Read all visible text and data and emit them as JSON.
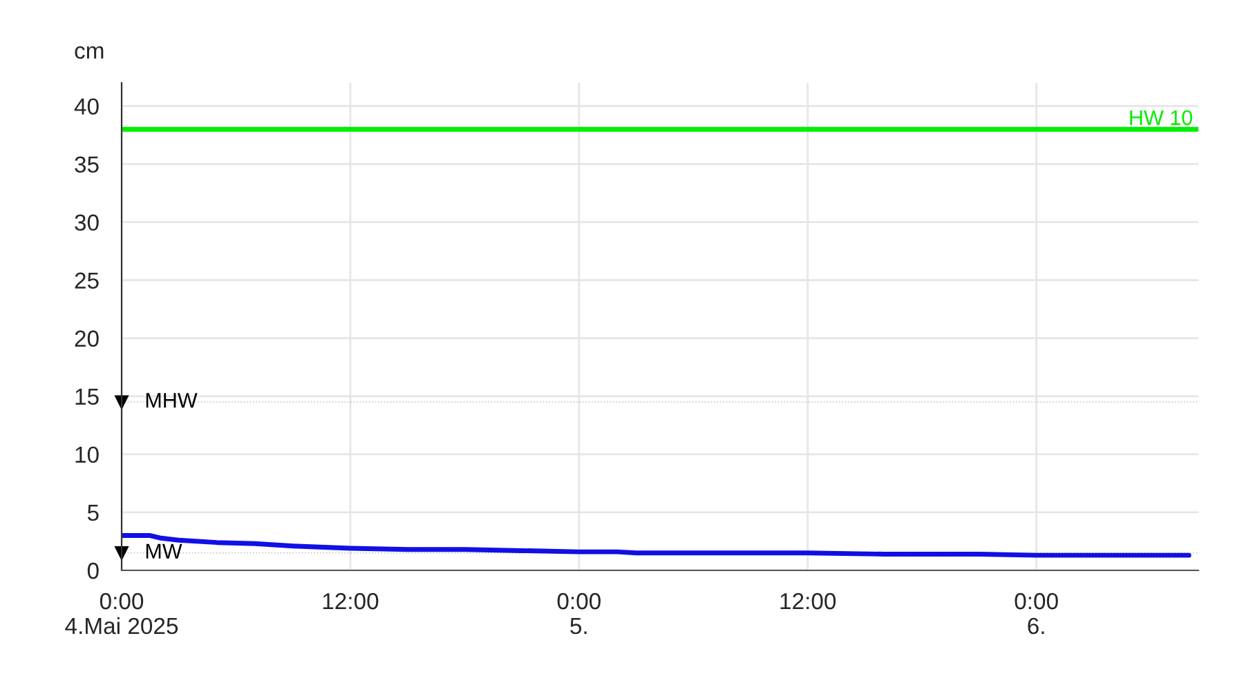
{
  "chart_data": {
    "type": "line",
    "ylabel": "cm",
    "x": [
      "2025-05-04T00:00",
      "2025-05-04T01:30",
      "2025-05-04T02:00",
      "2025-05-04T03:00",
      "2025-05-04T05:00",
      "2025-05-04T07:00",
      "2025-05-04T09:00",
      "2025-05-04T12:00",
      "2025-05-04T15:00",
      "2025-05-04T18:00",
      "2025-05-04T21:00",
      "2025-05-05T00:00",
      "2025-05-05T02:00",
      "2025-05-05T03:00",
      "2025-05-05T06:00",
      "2025-05-05T11:00",
      "2025-05-05T12:00",
      "2025-05-05T16:00",
      "2025-05-05T20:00",
      "2025-05-05T21:00",
      "2025-05-06T00:00",
      "2025-05-06T04:00",
      "2025-05-06T06:00",
      "2025-05-06T08:00"
    ],
    "series": [
      {
        "color": "#1010e8",
        "values": [
          3.0,
          3.0,
          2.8,
          2.6,
          2.4,
          2.3,
          2.1,
          1.9,
          1.8,
          1.8,
          1.7,
          1.6,
          1.6,
          1.5,
          1.5,
          1.5,
          1.5,
          1.4,
          1.4,
          1.4,
          1.3,
          1.3,
          1.3,
          1.3
        ]
      }
    ],
    "xlim": [
      "2025-05-04T00:00",
      "2025-05-06T08:30"
    ],
    "xticks": [
      {
        "value": "2025-05-04T00:00",
        "label": "0:00\n4.Mai 2025"
      },
      {
        "value": "2025-05-04T12:00",
        "label": "12:00"
      },
      {
        "value": "2025-05-05T00:00",
        "label": "0:00\n5."
      },
      {
        "value": "2025-05-05T12:00",
        "label": "12:00"
      },
      {
        "value": "2025-05-06T00:00",
        "label": "0:00\n6."
      }
    ],
    "ylim": [
      0,
      42
    ],
    "yticks": [
      0,
      5,
      10,
      15,
      20,
      25,
      30,
      35,
      40
    ],
    "grid": true,
    "line_style": "solid",
    "marker": "none",
    "ref_lines": [
      {
        "axis": "y",
        "value": 38,
        "label": "HW 10",
        "color": "#00ee00",
        "line_style": "solid"
      },
      {
        "axis": "y",
        "value": 14.5,
        "label": "MHW",
        "color": "#000000"
      },
      {
        "axis": "y",
        "value": 1.5,
        "label": "MW",
        "color": "#000000"
      }
    ]
  }
}
